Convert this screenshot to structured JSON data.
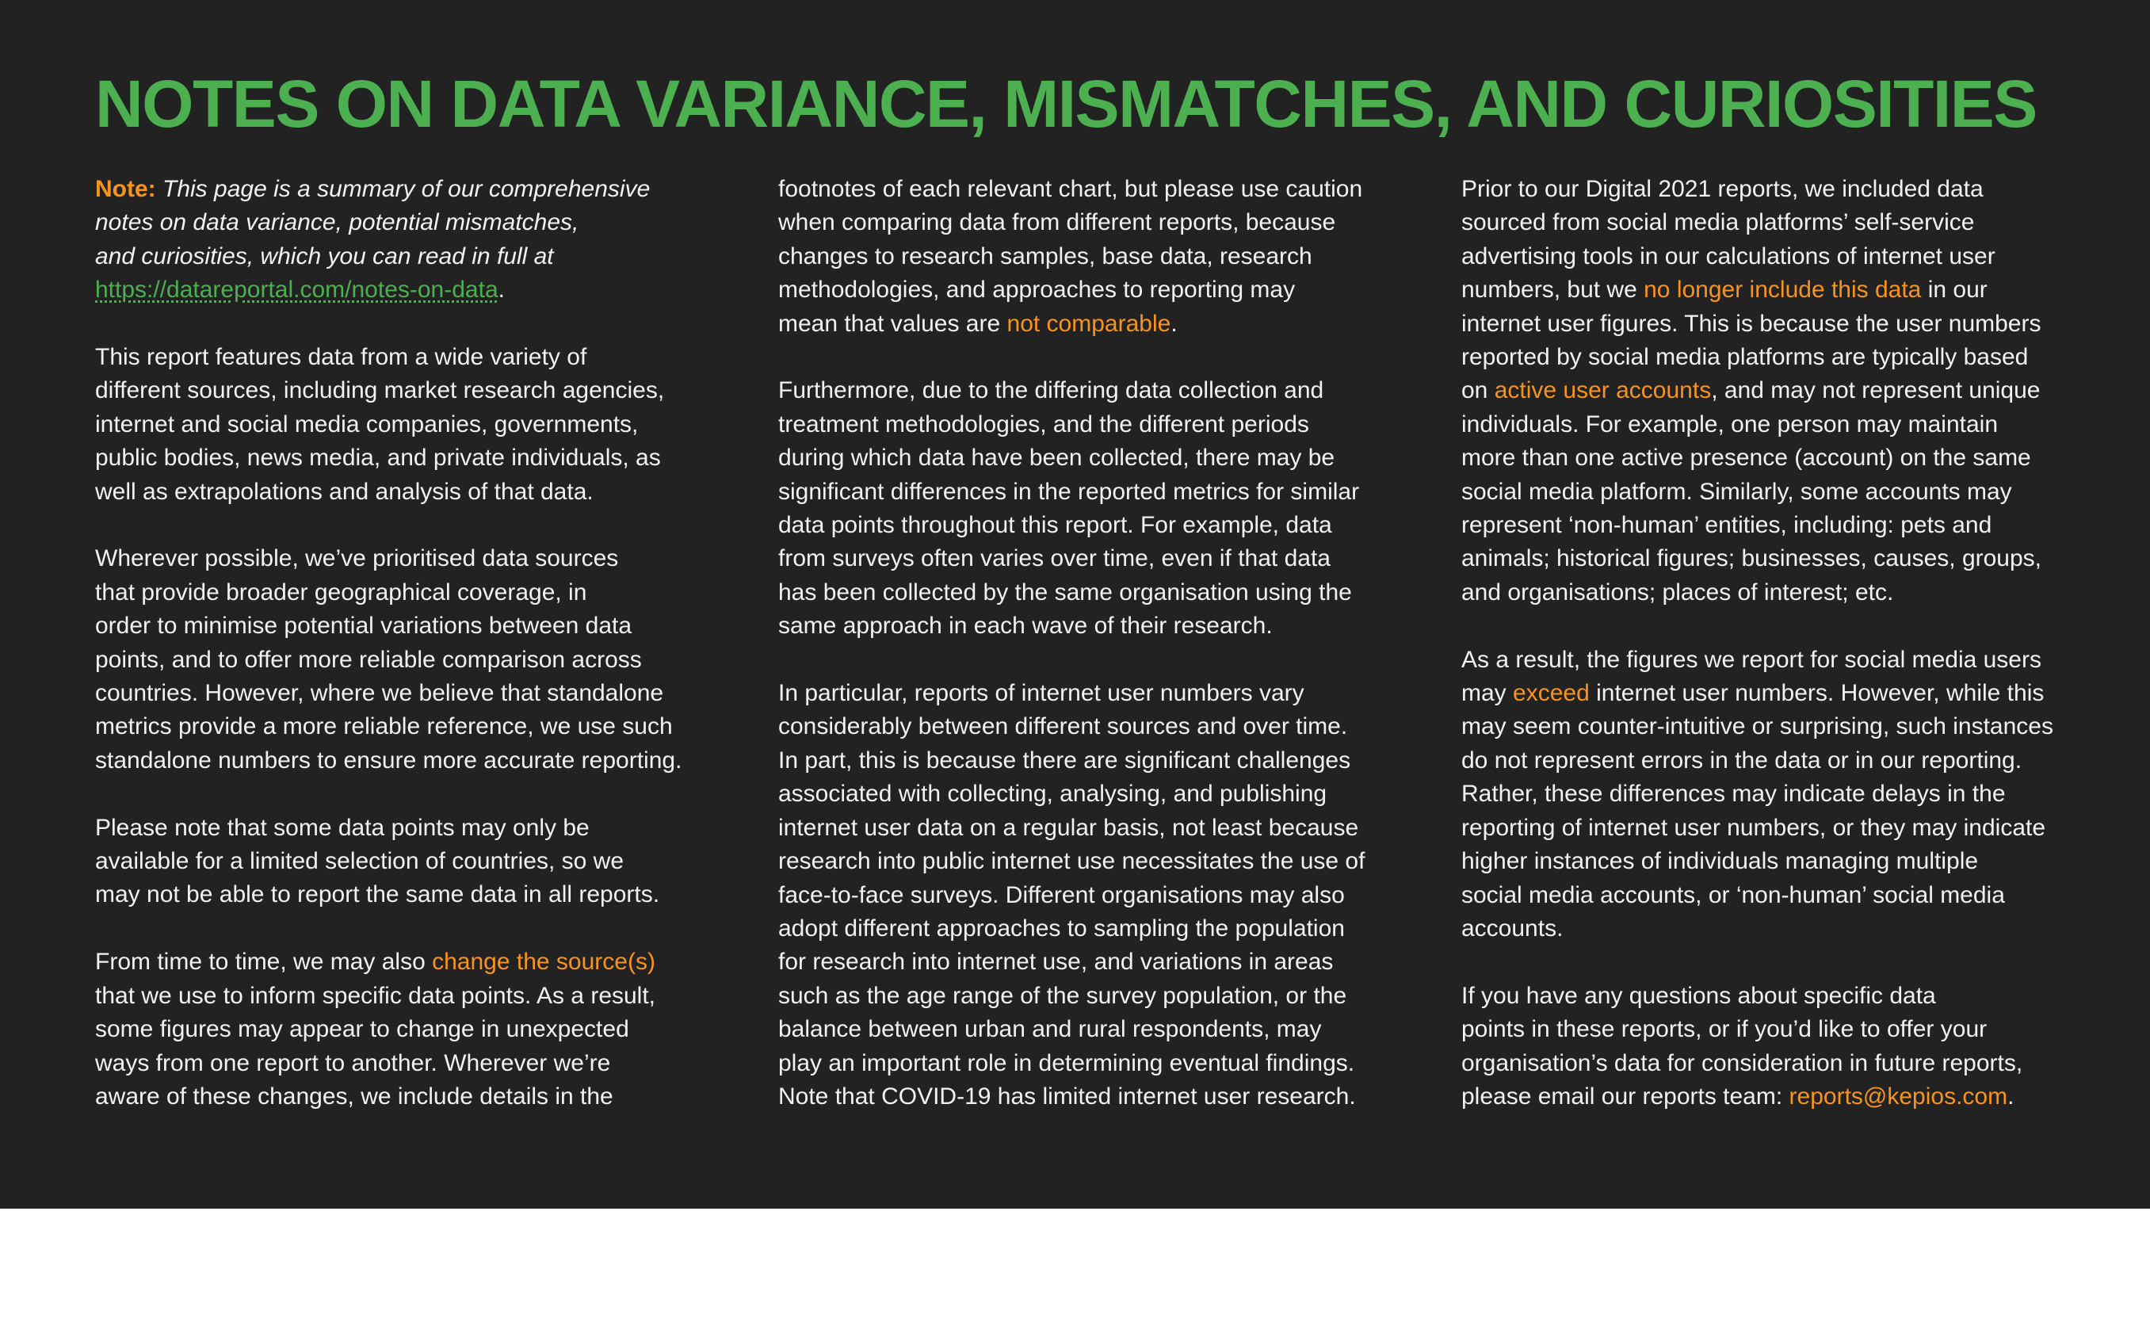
{
  "title": "NOTES ON DATA VARIANCE, MISMATCHES, AND CURIOSITIES",
  "colors": {
    "background": "#222222",
    "title_green": "#4caf50",
    "highlight_orange": "#f7941d",
    "text": "#f2f2f2",
    "below_page": "#ffffff"
  },
  "col1": {
    "note_label": "Note:",
    "note_l1": "This page is a summary of our comprehensive",
    "note_l2": "notes on data variance, potential mismatches,",
    "note_l3": "and curiosities, which you can read in full at",
    "note_url": "https://datareportal.com/notes-on-data",
    "note_period": ".",
    "p2": [
      "This report features data from a wide variety of",
      "different sources, including market research agencies,",
      "internet and social media companies, governments,",
      "public bodies, news media, and private individuals, as",
      "well as extrapolations and analysis of that data."
    ],
    "p3": [
      "Wherever possible, we’ve prioritised data sources",
      "that provide broader geographical coverage, in",
      "order to minimise potential variations between data",
      "points, and to offer more reliable comparison across",
      "countries. However, where we believe that standalone",
      "metrics provide a more reliable reference, we use such",
      "standalone numbers to ensure more accurate reporting."
    ],
    "p4": [
      "Please note that some data points may only be",
      "available for a limited selection of countries, so we",
      "may not be able to report the same data in all reports."
    ],
    "p5_l1_pre": "From time to time, we may also ",
    "p5_l1_hl": "change the source(s)",
    "p5_rest": [
      "that we use to inform specific data points. As a result,",
      "some figures may appear to change in unexpected",
      "ways from one report to another. Wherever we’re",
      "aware of these changes, we include details in the"
    ]
  },
  "col2": {
    "p1": [
      "footnotes of each relevant chart, but please use caution",
      "when comparing data from different reports, because",
      "changes to research samples, base data, research",
      "methodologies, and approaches to reporting may"
    ],
    "p1_last_pre": "mean that values are ",
    "p1_last_hl": "not comparable",
    "p1_last_post": ".",
    "p2": [
      "Furthermore, due to the differing data collection and",
      "treatment methodologies, and the different periods",
      "during which data have been collected, there may be",
      "significant differences in the reported metrics for similar",
      "data points throughout this report. For example, data",
      "from surveys often varies over time, even if that data",
      "has been collected by the same organisation using the",
      "same approach in each wave of their research."
    ],
    "p3": [
      "In particular, reports of internet user numbers vary",
      "considerably between different sources and over time.",
      "In part, this is because there are significant challenges",
      "associated with collecting, analysing, and publishing",
      "internet user data on a regular basis, not least because",
      "research into public internet use necessitates the use of",
      "face-to-face surveys. Different organisations may also",
      "adopt different approaches to sampling the population",
      "for research into internet use, and variations in areas",
      "such as the age range of the survey population, or the",
      "balance between urban and rural respondents, may",
      "play an important role in determining eventual findings.",
      "Note that COVID-19 has limited internet user research."
    ]
  },
  "col3": {
    "p1_start": [
      "Prior to our Digital 2021 reports, we included data",
      "sourced from social media platforms’ self-service",
      "advertising tools in our calculations of internet user"
    ],
    "p1_l4_pre": "numbers, but we ",
    "p1_l4_hl": "no longer include this data",
    "p1_l4_post": " in our",
    "p1_mid": [
      "internet user figures. This is because the user numbers",
      "reported by social media platforms are typically based"
    ],
    "p1_l7_pre": "on ",
    "p1_l7_hl": "active user accounts",
    "p1_l7_post": ", and may not represent unique",
    "p1_end": [
      "individuals. For example, one person may maintain",
      "more than one active presence (account) on the same",
      "social media platform. Similarly, some accounts may",
      "represent ‘non-human’ entities, including: pets and",
      "animals; historical figures; businesses, causes, groups,",
      "and organisations; places of interest; etc."
    ],
    "p2_l1": "As a result, the figures we report for social media users",
    "p2_l2_pre": "may ",
    "p2_l2_hl": "exceed",
    "p2_l2_post": " internet user numbers. However, while this",
    "p2_rest": [
      "may seem counter-intuitive or surprising, such instances",
      "do not represent errors in the data or in our reporting.",
      "Rather, these differences may indicate delays in the",
      "reporting of internet user numbers, or they may indicate",
      "higher instances of individuals managing multiple",
      "social media accounts, or ‘non-human’ social media",
      "accounts."
    ],
    "p3": [
      "If you have any questions about specific data",
      "points in these reports, or if you’d like to offer your",
      "organisation’s data for consideration in future reports,"
    ],
    "p3_last_pre": "please email our reports team: ",
    "p3_last_hl": "reports@kepios.com",
    "p3_last_post": "."
  }
}
